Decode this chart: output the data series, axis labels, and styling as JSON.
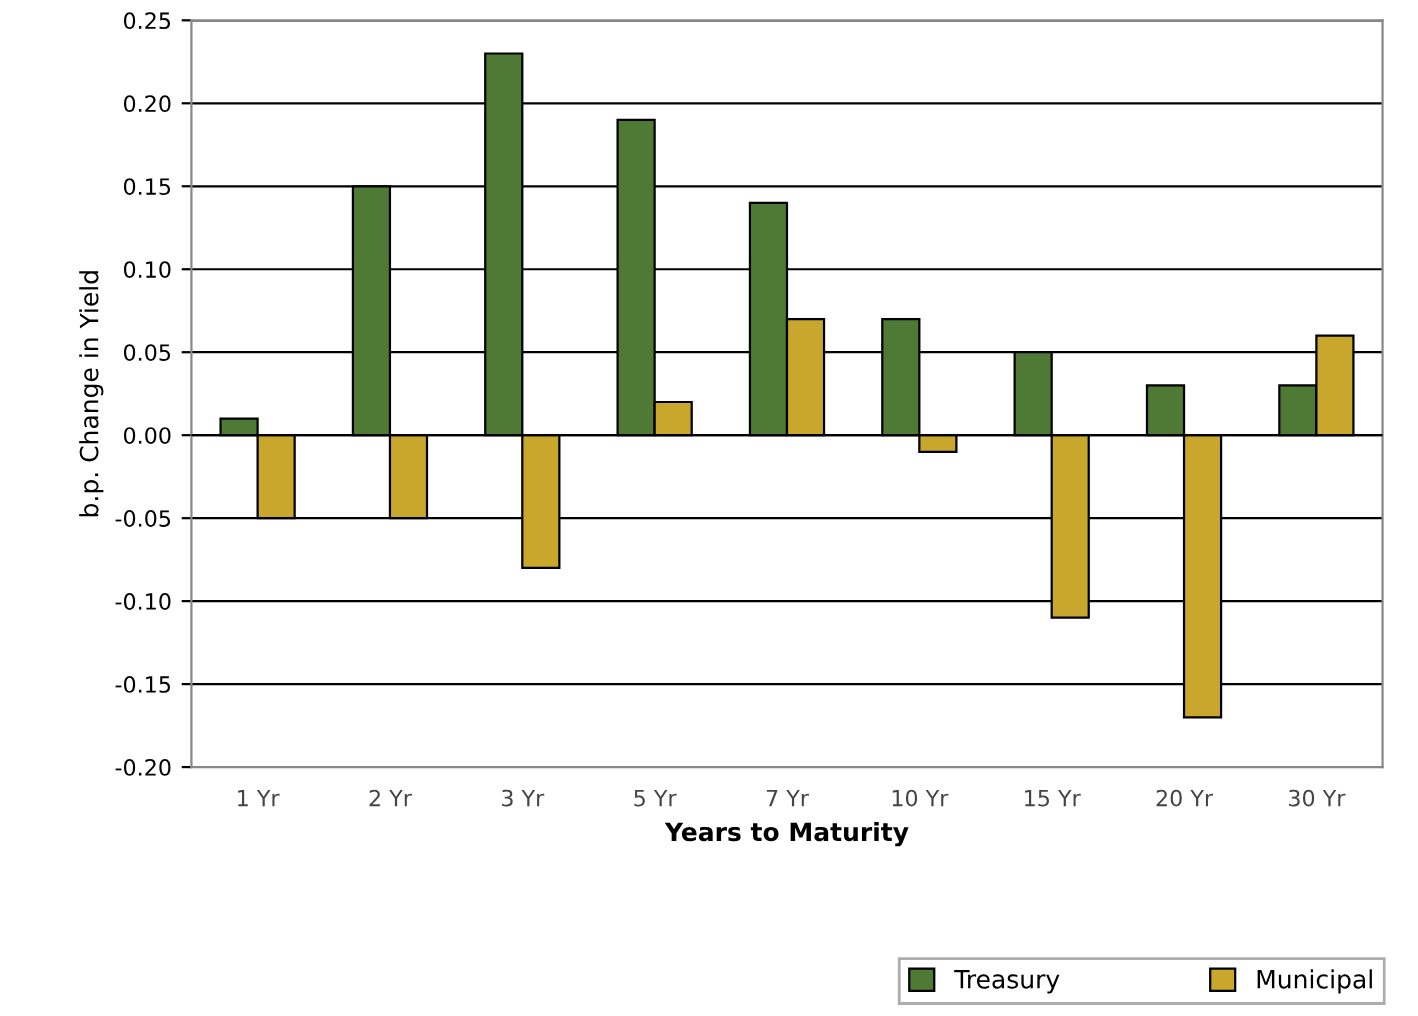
{
  "chart_data": {
    "type": "bar",
    "xlabel": "Years to Maturity",
    "ylabel": "b.p. Change in Yield",
    "categories": [
      "1 Yr",
      "2 Yr",
      "3 Yr",
      "5 Yr",
      "7 Yr",
      "10 Yr",
      "15 Yr",
      "20 Yr",
      "30 Yr"
    ],
    "series": [
      {
        "name": "Treasury",
        "color": "#4e7a35",
        "values": [
          0.01,
          0.15,
          0.23,
          0.19,
          0.14,
          0.07,
          0.05,
          0.03,
          0.03
        ]
      },
      {
        "name": "Municipal",
        "color": "#c9a62c",
        "values": [
          -0.05,
          -0.05,
          -0.08,
          0.02,
          0.07,
          -0.01,
          -0.11,
          -0.17,
          0.06
        ]
      }
    ],
    "ylim": [
      -0.2,
      0.25
    ],
    "yticks": [
      {
        "value": -0.2,
        "label": "-0.20"
      },
      {
        "value": -0.15,
        "label": "-0.15"
      },
      {
        "value": -0.1,
        "label": "-0.10"
      },
      {
        "value": -0.05,
        "label": "-0.05"
      },
      {
        "value": 0,
        "label": "0.00"
      },
      {
        "value": 0.05,
        "label": "0.05"
      },
      {
        "value": 0.1,
        "label": "0.10"
      },
      {
        "value": 0.15,
        "label": "0.15"
      },
      {
        "value": 0.2,
        "label": "0.20"
      },
      {
        "value": 0.25,
        "label": "0.25"
      }
    ],
    "grid": "y",
    "legend": "bottom"
  }
}
